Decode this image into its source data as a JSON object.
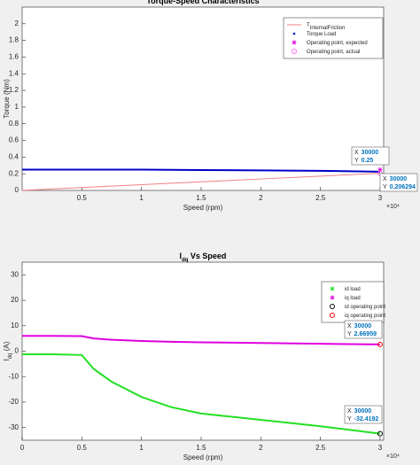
{
  "chart_data": [
    {
      "type": "line",
      "title": "Torque-Speed Characteristics",
      "xlabel": "Speed (rpm)",
      "ylabel": "Torque (Nm)",
      "x_multiplier": "×10⁴",
      "x": [
        0,
        5000,
        10000,
        15000,
        20000,
        25000,
        30000
      ],
      "xlim": [
        0,
        30300
      ],
      "ylim": [
        0,
        2.2
      ],
      "xticks": [
        {
          "value": 5000,
          "label": "0.5"
        },
        {
          "value": 10000,
          "label": "1"
        },
        {
          "value": 15000,
          "label": "1.5"
        },
        {
          "value": 20000,
          "label": "2"
        },
        {
          "value": 25000,
          "label": "2.5"
        },
        {
          "value": 30000,
          "label": "3"
        }
      ],
      "yticks": [
        0,
        0.2,
        0.4,
        0.6,
        0.8,
        1,
        1.2,
        1.4,
        1.6,
        1.8,
        2
      ],
      "series": [
        {
          "name": "T",
          "name_sub": "InternalFriction",
          "color": "#f08080",
          "marker": "line",
          "values": [
            0,
            0.0344,
            0.0688,
            0.1031,
            0.1375,
            0.1719,
            0.2063
          ]
        },
        {
          "name": "Torque Load",
          "color": "#0000c8",
          "marker": "dot",
          "values": [
            0.25,
            0.25,
            0.25,
            0.245,
            0.24,
            0.235,
            0.225
          ]
        }
      ],
      "points": [
        {
          "name": "Operating point, expected",
          "color": "#e000e0",
          "marker": "star",
          "x": 30000,
          "y": 0.25
        },
        {
          "name": "Operating point, actual",
          "color": "#ff66ff",
          "marker": "circle",
          "x": 30000,
          "y": 0.206294
        }
      ],
      "datatip_labels": [
        "X",
        "Y"
      ],
      "datatips": [
        {
          "x": 30000,
          "y": 0.25
        },
        {
          "x": 30000,
          "y": 0.206294
        }
      ]
    },
    {
      "type": "line",
      "title": "I",
      "title_sub": "dq",
      "title_rest": " Vs Speed",
      "xlabel": "Speed (rpm)",
      "ylabel": "I",
      "ylabel_sub": "dq",
      "ylabel_rest": " (A)",
      "x_multiplier": "×10⁴",
      "x": [
        0,
        2500,
        5000,
        6000,
        7500,
        10000,
        12500,
        15000,
        20000,
        25000,
        30000
      ],
      "xlim": [
        0,
        30300
      ],
      "ylim": [
        -35,
        35
      ],
      "xticks": [
        0,
        {
          "value": 5000,
          "label": "0.5"
        },
        {
          "value": 10000,
          "label": "1"
        },
        {
          "value": 15000,
          "label": "1.5"
        },
        {
          "value": 20000,
          "label": "2"
        },
        {
          "value": 25000,
          "label": "2.5"
        },
        {
          "value": 30000,
          "label": "3"
        }
      ],
      "yticks": [
        -30,
        -20,
        -10,
        0,
        10,
        20,
        30
      ],
      "series": [
        {
          "name": "id load",
          "color": "#22e022",
          "marker": "star",
          "values": [
            -1.2,
            -1.2,
            -1.5,
            -7,
            -12,
            -18,
            -22,
            -24.5,
            -27,
            -29.5,
            -32.4192
          ]
        },
        {
          "name": "iq load",
          "color": "#e000e0",
          "marker": "star",
          "values": [
            6,
            6,
            5.9,
            5,
            4.5,
            4,
            3.7,
            3.5,
            3.2,
            2.9,
            2.66959
          ]
        }
      ],
      "points": [
        {
          "name": "id operating point",
          "color": "#000000",
          "marker": "circle",
          "x": 30000,
          "y": -32.4192
        },
        {
          "name": "iq operating point",
          "color": "#ff0000",
          "marker": "circle",
          "x": 30000,
          "y": 2.66959
        }
      ],
      "datatip_labels": [
        "X",
        "Y"
      ],
      "datatips": [
        {
          "x": 30000,
          "y": 2.66959
        },
        {
          "x": 30000,
          "y": -32.4192
        }
      ]
    }
  ]
}
